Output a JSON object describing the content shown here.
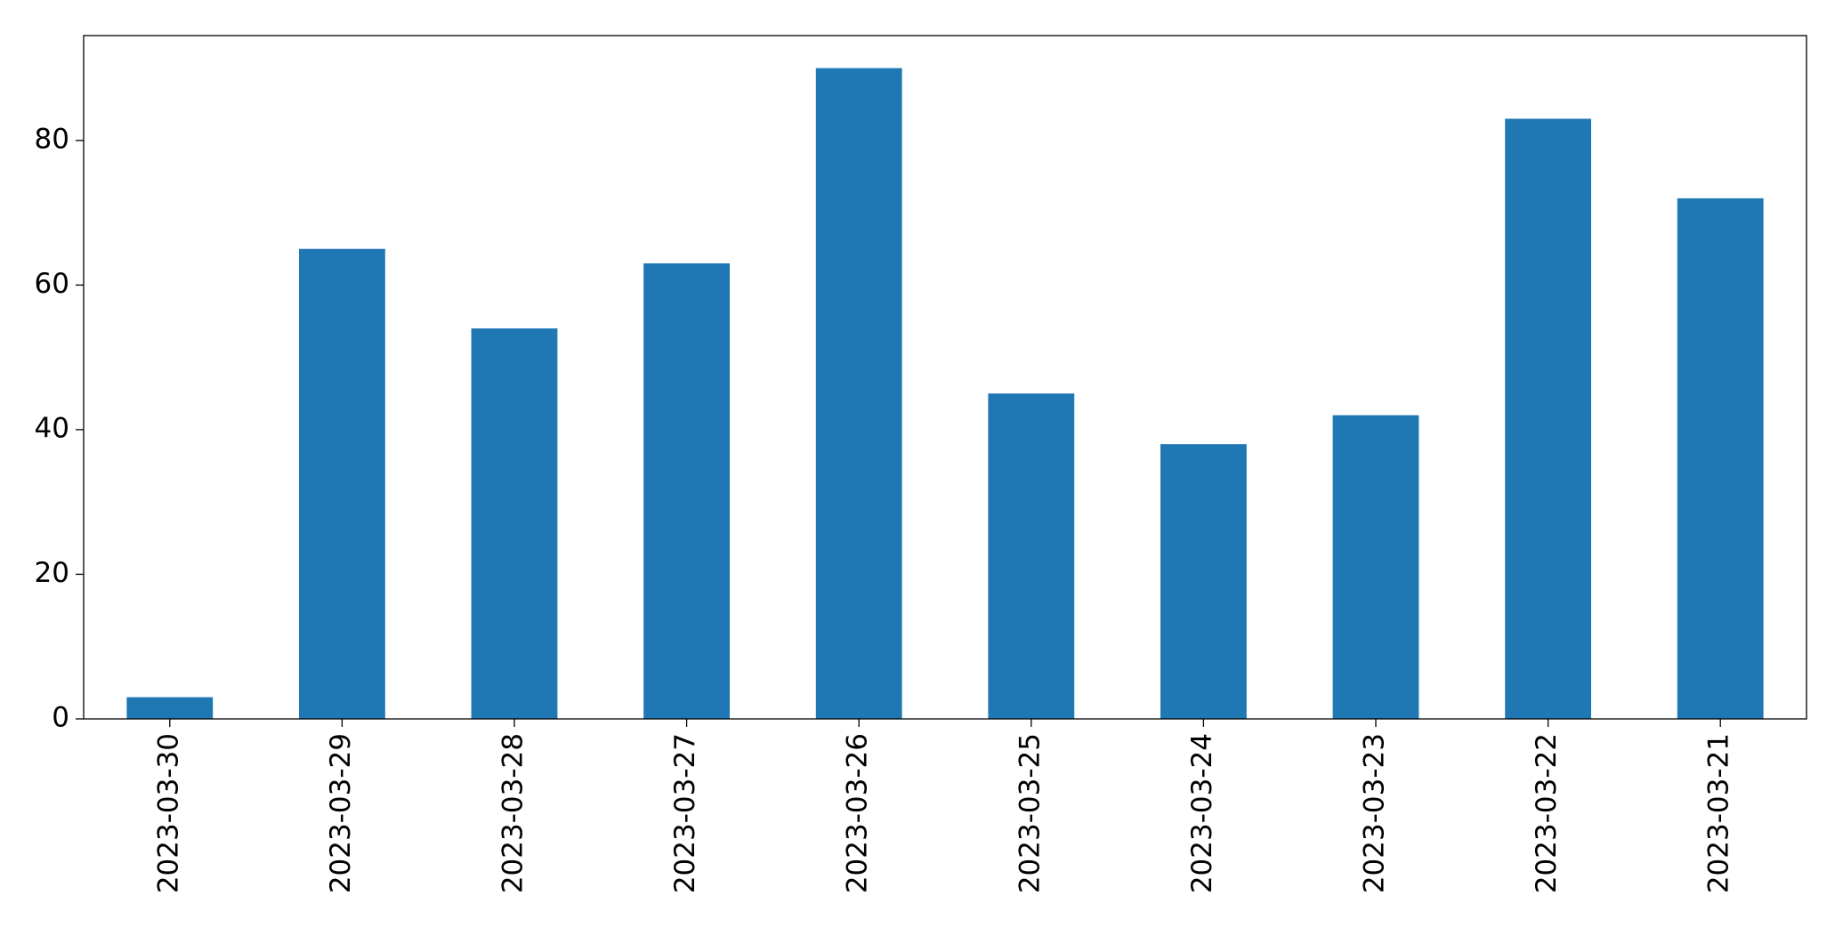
{
  "chart_data": {
    "type": "bar",
    "categories": [
      "2023-03-30",
      "2023-03-29",
      "2023-03-28",
      "2023-03-27",
      "2023-03-26",
      "2023-03-25",
      "2023-03-24",
      "2023-03-23",
      "2023-03-22",
      "2023-03-21"
    ],
    "values": [
      3,
      65,
      54,
      63,
      90,
      45,
      38,
      42,
      83,
      72
    ],
    "color": "#1f77b4",
    "ylim": [
      0,
      94.5
    ],
    "yticks": [
      0,
      20,
      40,
      60,
      80
    ],
    "grid": false
  }
}
